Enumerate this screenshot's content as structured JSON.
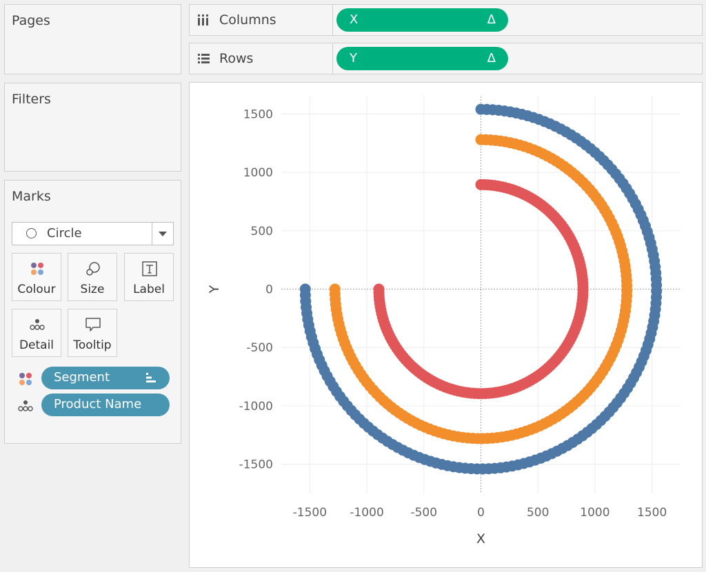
{
  "left_panel": {
    "pages_title": "Pages",
    "filters_title": "Filters",
    "marks_title": "Marks",
    "mark_type": "Circle",
    "mark_buttons": [
      {
        "id": "colour",
        "label": "Colour"
      },
      {
        "id": "size",
        "label": "Size"
      },
      {
        "id": "label",
        "label": "Label"
      },
      {
        "id": "detail",
        "label": "Detail"
      },
      {
        "id": "tooltip",
        "label": "Tooltip"
      }
    ],
    "fields": [
      {
        "label": "Segment",
        "icon": "colour-icon"
      },
      {
        "label": "Product Name",
        "icon": "detail-icon"
      }
    ]
  },
  "shelves": {
    "columns_label": "Columns",
    "columns_pill": "X",
    "rows_label": "Rows",
    "rows_pill": "Y",
    "delta": "Δ",
    "pill_color": "#00b180"
  },
  "colors": {
    "field_pill": "#4996b2"
  },
  "chart_data": {
    "type": "scatter",
    "xlabel": "X",
    "ylabel": "Y",
    "xlim": [
      -1750,
      1750
    ],
    "ylim": [
      -1750,
      1650
    ],
    "x_ticks": [
      -1500,
      -1000,
      -500,
      0,
      500,
      1000,
      1500
    ],
    "y_ticks": [
      1500,
      1000,
      500,
      0,
      -500,
      -1000,
      -1500
    ],
    "grid": true,
    "legend": "none",
    "series": [
      {
        "color": "#4e79a7",
        "radius": 1540,
        "start_deg": 90,
        "end_deg": -180
      },
      {
        "color": "#f28e2b",
        "radius": 1280,
        "start_deg": 90,
        "end_deg": -180
      },
      {
        "color": "#e15759",
        "radius": 895,
        "start_deg": 90,
        "end_deg": -180
      }
    ]
  }
}
